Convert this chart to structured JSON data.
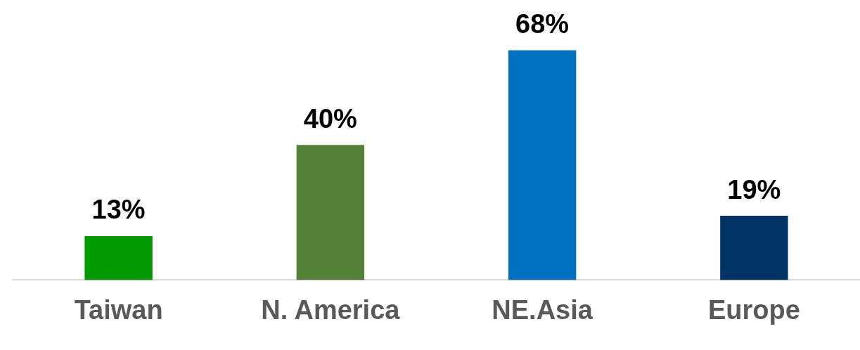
{
  "chart_data": {
    "type": "bar",
    "categories": [
      "Taiwan",
      "N. America",
      "NE.Asia",
      "Europe"
    ],
    "values": [
      13,
      40,
      68,
      19
    ],
    "value_labels": [
      "13%",
      "40%",
      "68%",
      "19%"
    ],
    "colors": [
      "#009900",
      "#538135",
      "#0070c0",
      "#003366"
    ],
    "grid": false,
    "legend": false
  }
}
